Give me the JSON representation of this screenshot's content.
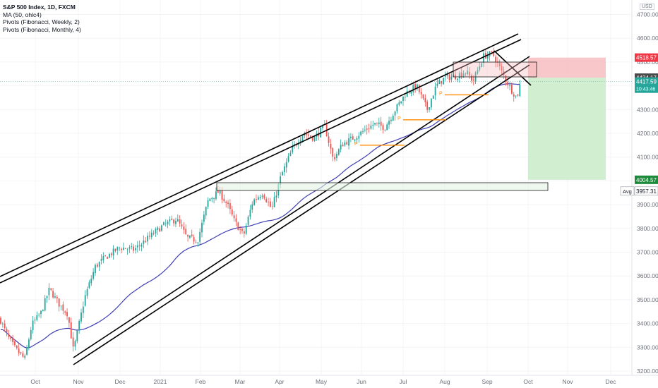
{
  "header": {
    "title": "S&P 500 Index, 1D, FXCM",
    "indicators": [
      "MA (50, ohlc4)",
      "Pivots (Fibonacci, Weekly, 2)",
      "Pivots (Fibonacci, Monthly, 4)"
    ],
    "currency": "USD"
  },
  "chart_data": {
    "type": "candlestick",
    "x_labels": [
      "Oct",
      "Nov",
      "Dec",
      "2021",
      "Feb",
      "Mar",
      "Apr",
      "May",
      "Jun",
      "Jul",
      "Aug",
      "Sep",
      "Oct",
      "Nov",
      "Dec"
    ],
    "y_ticks": [
      3200,
      3300,
      3400,
      3500,
      3600,
      3700,
      3800,
      3900,
      4000,
      4100,
      4200,
      4300,
      4400,
      4500,
      4600,
      4700
    ],
    "y_range": [
      3185,
      4740
    ],
    "price_tags": [
      {
        "label": "4518.57",
        "value": 4518.57,
        "color": "#f23645"
      },
      {
        "label": "4434.17",
        "value": 4434.17,
        "color": "#4a4a4a"
      },
      {
        "label": "4417.59",
        "value": 4417.59,
        "sub": "10:43:46",
        "color": "#26a69a"
      },
      {
        "label": "4004.57",
        "value": 4004.57,
        "color": "#1e8a3c"
      },
      {
        "label": "3957.31",
        "value": 3957.31,
        "prefix": "Avg",
        "color": "#ffffff"
      }
    ],
    "pivot_label": "P",
    "colors": {
      "up": "#26a69a",
      "down": "#ef5350",
      "ma": "#3f3fb4",
      "pivot": "#ff8c00",
      "stop_zone": "#f6b4b8",
      "target_zone": "#c9ebc9"
    }
  }
}
